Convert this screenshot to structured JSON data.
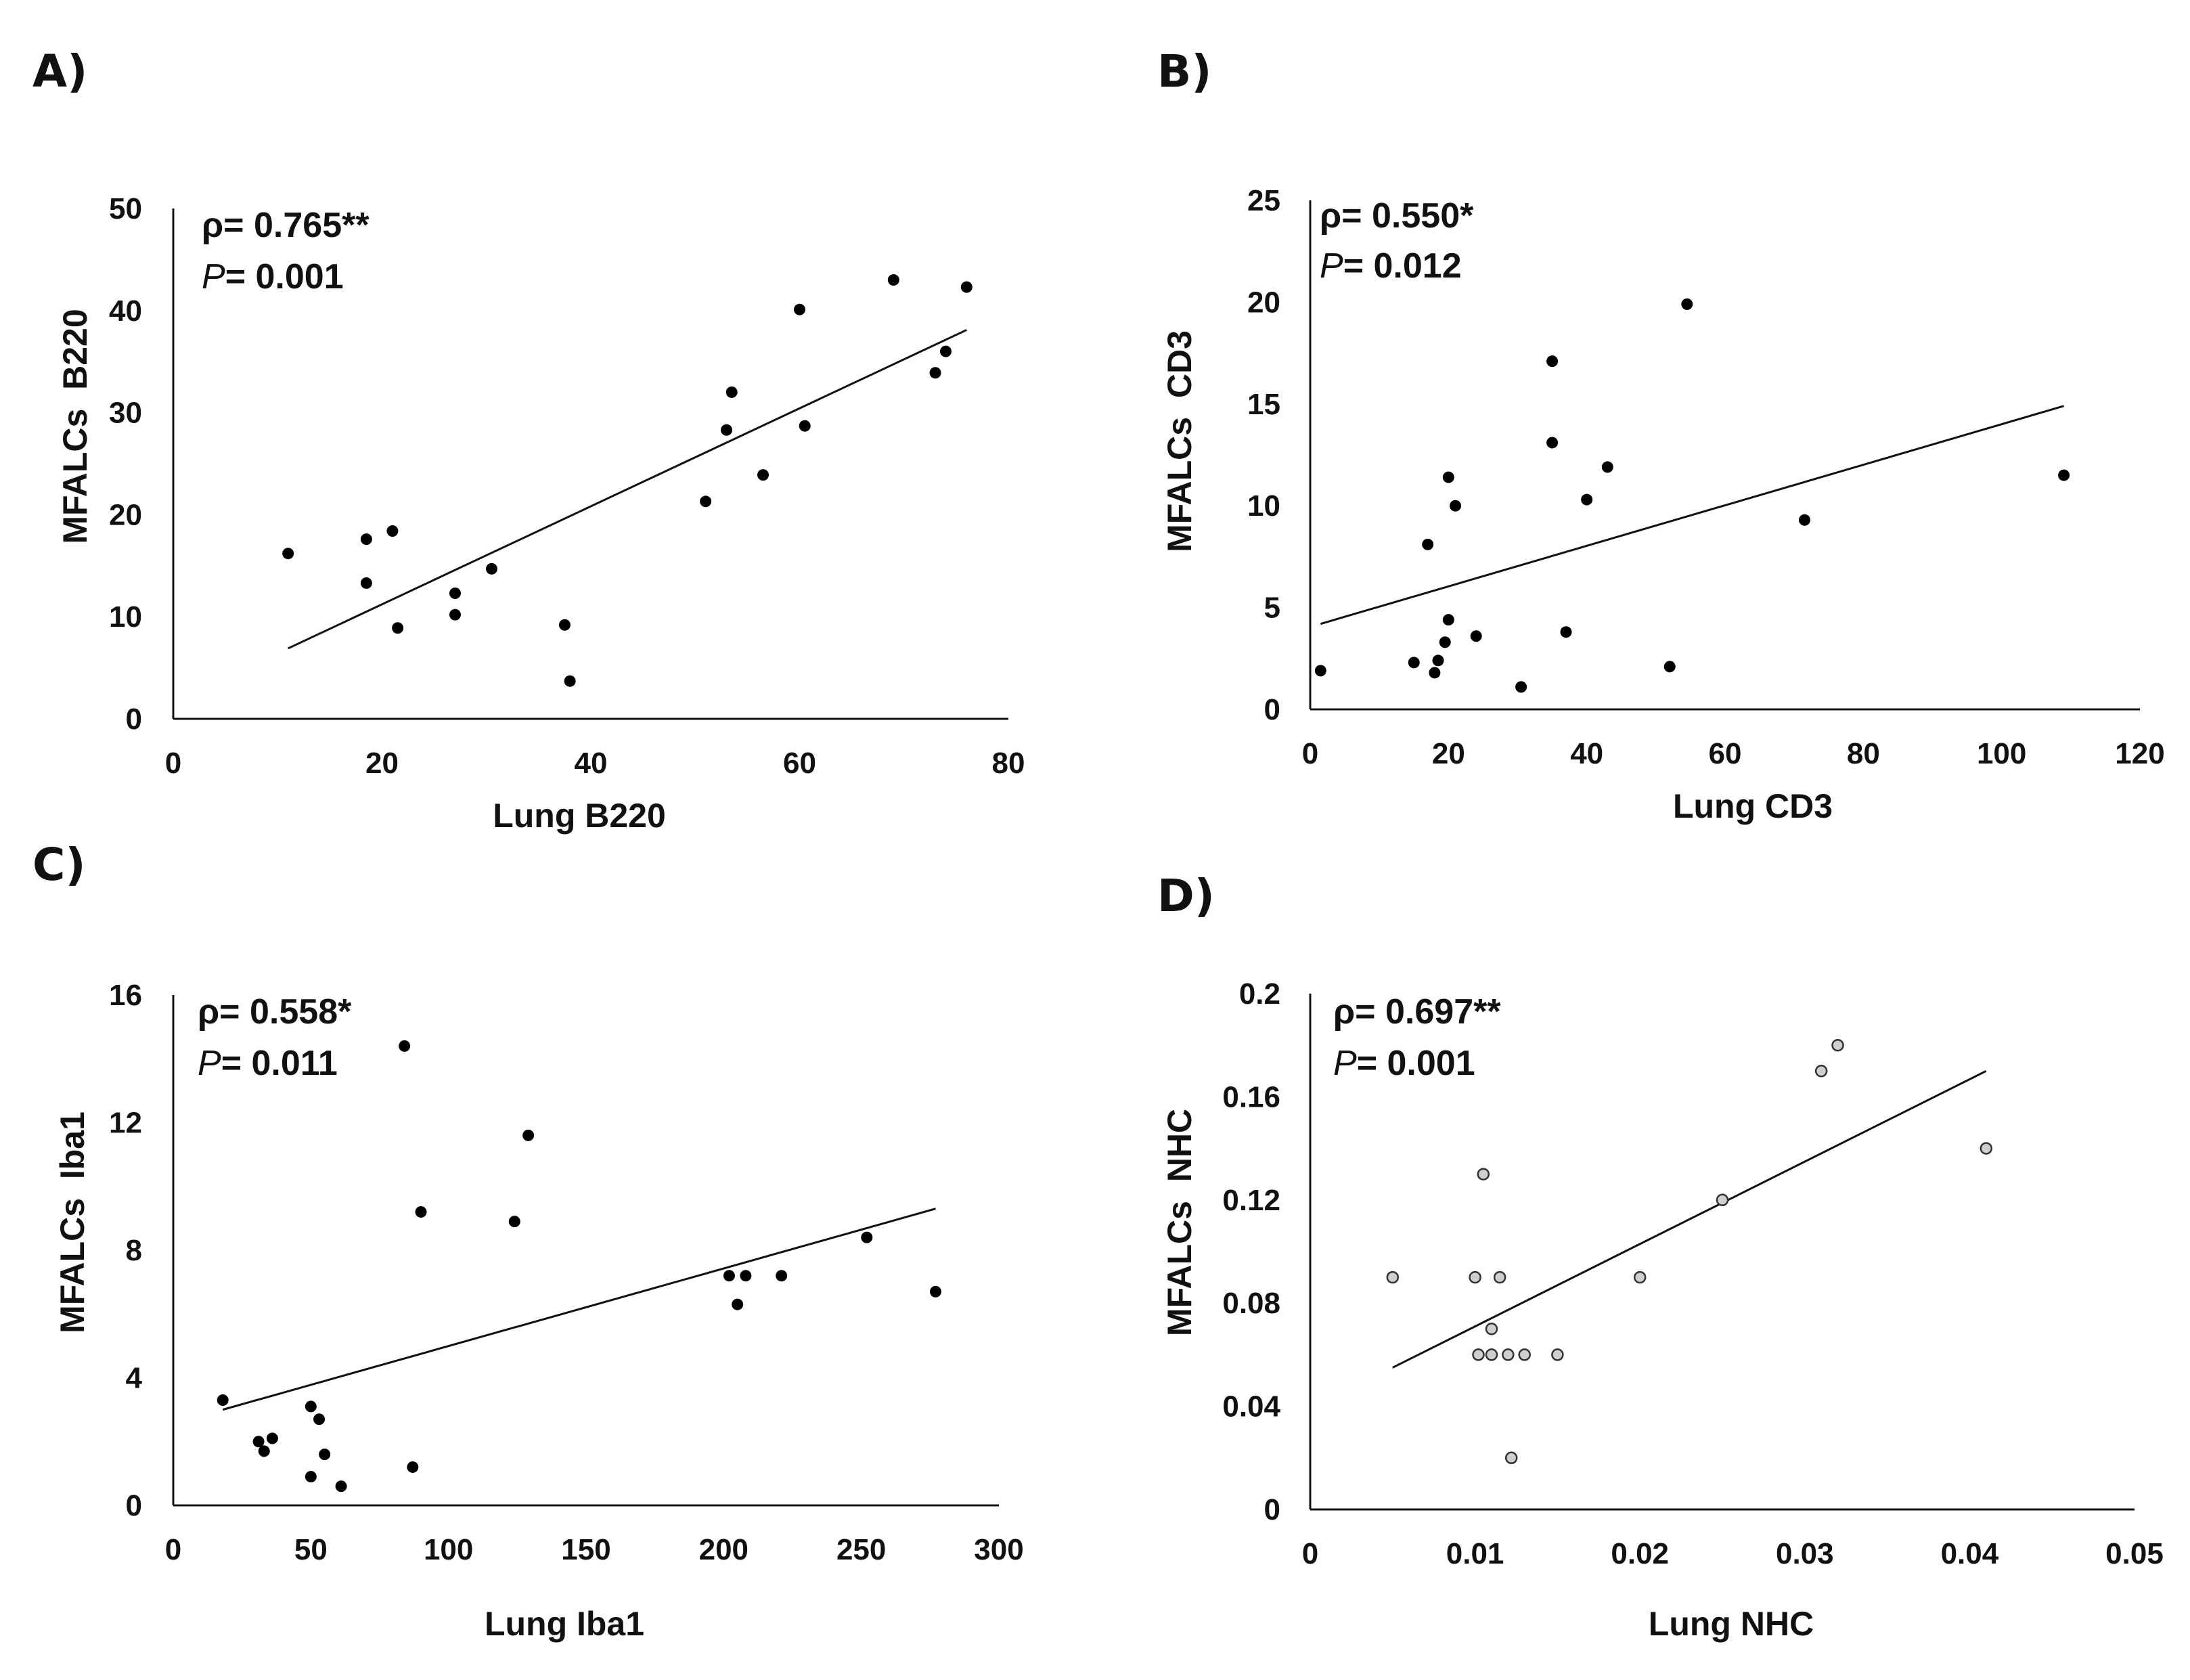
{
  "chart_data": [
    {
      "type": "scatter",
      "panel_label": "A)",
      "xlabel": "Lung B220",
      "ylabel": "MFALCs  B220",
      "xlim": [
        0,
        80
      ],
      "ylim": [
        0,
        50
      ],
      "xticks": [
        "0",
        "20",
        "40",
        "60",
        "80"
      ],
      "yticks": [
        "0",
        "10",
        "20",
        "30",
        "40",
        "50"
      ],
      "rho_label": "ρ= 0.765**",
      "p_italic": "P",
      "p_label": "= 0.001",
      "marker": "filled",
      "trendline": {
        "x1": 11,
        "y1": 6.9,
        "x2": 76,
        "y2": 38.1
      },
      "points": [
        [
          11,
          16.2
        ],
        [
          18.5,
          17.6
        ],
        [
          18.5,
          13.3
        ],
        [
          21,
          18.4
        ],
        [
          21.5,
          8.9
        ],
        [
          27,
          12.3
        ],
        [
          27,
          10.2
        ],
        [
          30.5,
          14.7
        ],
        [
          37.5,
          9.2
        ],
        [
          38,
          3.7
        ],
        [
          51,
          21.3
        ],
        [
          53,
          28.3
        ],
        [
          53.5,
          32
        ],
        [
          56.5,
          23.9
        ],
        [
          60,
          40.1
        ],
        [
          60.5,
          28.7
        ],
        [
          69,
          43
        ],
        [
          73,
          33.9
        ],
        [
          74,
          36
        ],
        [
          76,
          42.3
        ]
      ]
    },
    {
      "type": "scatter",
      "panel_label": "B)",
      "xlabel": "Lung CD3",
      "ylabel": "MFALCs  CD3",
      "xlim": [
        0,
        120
      ],
      "ylim": [
        0,
        25
      ],
      "xticks": [
        "0",
        "20",
        "40",
        "60",
        "80",
        "100",
        "120"
      ],
      "yticks": [
        "0",
        "5",
        "10",
        "15",
        "20",
        "25"
      ],
      "rho_label": "ρ= 0.550*",
      "p_italic": "P",
      "p_label": "= 0.012",
      "marker": "filled",
      "trendline": {
        "x1": 1.5,
        "y1": 4.2,
        "x2": 109,
        "y2": 14.9
      },
      "points": [
        [
          1.5,
          1.9
        ],
        [
          15,
          2.3
        ],
        [
          17,
          8.1
        ],
        [
          18,
          1.8
        ],
        [
          18.5,
          2.4
        ],
        [
          19.5,
          3.3
        ],
        [
          20,
          4.4
        ],
        [
          20,
          11.4
        ],
        [
          21,
          10
        ],
        [
          24,
          3.6
        ],
        [
          30.5,
          1.1
        ],
        [
          35,
          17.1
        ],
        [
          35,
          13.1
        ],
        [
          37,
          3.8
        ],
        [
          40,
          10.3
        ],
        [
          43,
          11.9
        ],
        [
          52,
          2.1
        ],
        [
          54.5,
          19.9
        ],
        [
          71.5,
          9.3
        ],
        [
          109,
          11.5
        ]
      ]
    },
    {
      "type": "scatter",
      "panel_label": "C)",
      "xlabel": "Lung Iba1",
      "ylabel": "MFALCs  Iba1",
      "xlim": [
        0,
        300
      ],
      "ylim": [
        0,
        16
      ],
      "xticks": [
        "0",
        "50",
        "100",
        "150",
        "200",
        "250",
        "300"
      ],
      "yticks": [
        "0",
        "4",
        "8",
        "12",
        "16"
      ],
      "rho_label": "ρ= 0.558*",
      "p_italic": "P",
      "p_label": "= 0.011",
      "marker": "filled",
      "trendline": {
        "x1": 18,
        "y1": 3.0,
        "x2": 277,
        "y2": 9.3
      },
      "points": [
        [
          18,
          3.3
        ],
        [
          31,
          2.0
        ],
        [
          33,
          1.7
        ],
        [
          36,
          2.1
        ],
        [
          50,
          3.1
        ],
        [
          50,
          0.9
        ],
        [
          53,
          2.7
        ],
        [
          55,
          1.6
        ],
        [
          61,
          0.6
        ],
        [
          84,
          14.4
        ],
        [
          87,
          1.2
        ],
        [
          90,
          9.2
        ],
        [
          124,
          8.9
        ],
        [
          129,
          11.6
        ],
        [
          202,
          7.2
        ],
        [
          205,
          6.3
        ],
        [
          208,
          7.2
        ],
        [
          221,
          7.2
        ],
        [
          252,
          8.4
        ],
        [
          277,
          6.7
        ]
      ]
    },
    {
      "type": "scatter",
      "panel_label": "D)",
      "xlabel": "Lung NHC",
      "ylabel": "MFALCs  NHC",
      "xlim": [
        0,
        0.05
      ],
      "ylim": [
        0,
        0.2
      ],
      "xticks": [
        "0",
        "0.01",
        "0.02",
        "0.03",
        "0.04",
        "0.05"
      ],
      "yticks": [
        "0",
        "0.04",
        "0.08",
        "0.12",
        "0.16",
        "0.2"
      ],
      "rho_label": "ρ= 0.697**",
      "p_italic": "P",
      "p_label": "= 0.001",
      "marker": "hollow",
      "trendline": {
        "x1": 0.005,
        "y1": 0.055,
        "x2": 0.041,
        "y2": 0.17
      },
      "points": [
        [
          0.005,
          0.09
        ],
        [
          0.01,
          0.09
        ],
        [
          0.0102,
          0.06
        ],
        [
          0.0105,
          0.13
        ],
        [
          0.011,
          0.06
        ],
        [
          0.011,
          0.07
        ],
        [
          0.0115,
          0.09
        ],
        [
          0.012,
          0.06
        ],
        [
          0.0122,
          0.02
        ],
        [
          0.013,
          0.06
        ],
        [
          0.015,
          0.06
        ],
        [
          0.02,
          0.09
        ],
        [
          0.025,
          0.12
        ],
        [
          0.031,
          0.17
        ],
        [
          0.032,
          0.18
        ],
        [
          0.041,
          0.14
        ]
      ]
    }
  ]
}
